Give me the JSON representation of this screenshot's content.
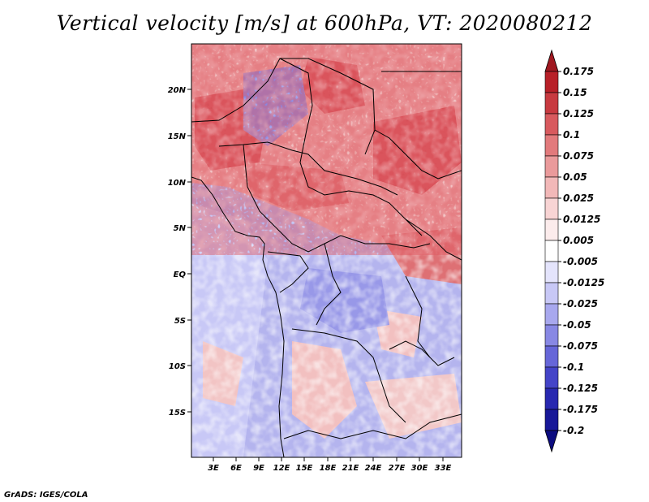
{
  "title": "Vertical velocity [m/s] at 600hPa, VT: 2020080212",
  "credit": "GrADS: IGES/COLA",
  "map": {
    "lat_labels": [
      "20N",
      "15N",
      "10N",
      "5N",
      "EQ",
      "5S",
      "10S",
      "15S"
    ],
    "lon_labels": [
      "3E",
      "6E",
      "9E",
      "12E",
      "15E",
      "18E",
      "21E",
      "24E",
      "27E",
      "30E",
      "33E"
    ]
  },
  "colorbar": {
    "labels": [
      "0.175",
      "0.15",
      "0.125",
      "0.1",
      "0.075",
      "0.05",
      "0.025",
      "0.0125",
      "0.005",
      "-0.005",
      "-0.0125",
      "-0.025",
      "-0.05",
      "-0.075",
      "-0.1",
      "-0.125",
      "-0.175",
      "-0.2"
    ],
    "colors": [
      "#a01820",
      "#b82028",
      "#c83a40",
      "#d85a5e",
      "#e27a7c",
      "#ea9a9b",
      "#f2b8b8",
      "#f8d4d4",
      "#fcecec",
      "#ffffff",
      "#e4e4fc",
      "#c8c8f6",
      "#a8a8ee",
      "#8888e4",
      "#6666d8",
      "#4444c8",
      "#2828b0",
      "#181898",
      "#0c0c80"
    ]
  }
}
